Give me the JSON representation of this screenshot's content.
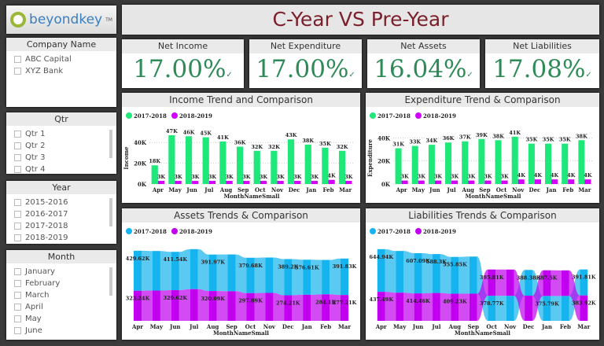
{
  "logo": {
    "text": "beyondkey",
    "tm": "TM"
  },
  "title": "C-Year VS Pre-Year",
  "slicers": [
    {
      "title": "Company Name",
      "items": [
        "ABC Capital",
        "XYZ Bank"
      ],
      "scroll": false
    },
    {
      "title": "Qtr",
      "items": [
        "Qtr 1",
        "Qtr 2",
        "Qtr 3",
        "Qtr 4"
      ],
      "scroll": true
    },
    {
      "title": "Year",
      "items": [
        "2015-2016",
        "2016-2017",
        "2017-2018",
        "2018-2019"
      ],
      "scroll": true
    },
    {
      "title": "Month",
      "items": [
        "January",
        "February",
        "March",
        "April",
        "May",
        "June"
      ],
      "scroll": true
    }
  ],
  "kpis": [
    {
      "label": "Net Income",
      "value": "17.00%"
    },
    {
      "label": "Net Expenditure",
      "value": "17.00%"
    },
    {
      "label": "Net Assets",
      "value": "16.04%"
    },
    {
      "label": "Net Liabilities",
      "value": "17.08%"
    }
  ],
  "kpi_icon": "check-icon",
  "colors": {
    "green": "#1ee87a",
    "magenta": "#d400ff",
    "blue": "#15b4ee",
    "purple": "#c000ee",
    "title": "#7a1f2b",
    "kpi": "#2e8b57"
  },
  "chart_data": [
    {
      "type": "bar",
      "title": "Income Trend and Comparison",
      "xlabel": "MonthNameSmall",
      "ylabel": "Income",
      "categories": [
        "Apr",
        "May",
        "Jun",
        "Jul",
        "Aug",
        "Sep",
        "Oct",
        "Nov",
        "Dec",
        "Jan",
        "Feb",
        "Mar"
      ],
      "yticks": [
        "0K",
        "20K",
        "40K"
      ],
      "ylim": [
        0,
        50
      ],
      "series": [
        {
          "name": "2017-2018",
          "values": [
            18,
            47,
            46,
            45,
            41,
            36,
            32,
            32,
            43,
            38,
            35,
            32
          ],
          "color": "#1ee87a"
        },
        {
          "name": "2018-2019",
          "values": [
            3,
            3,
            3,
            3,
            3,
            3,
            3,
            3,
            3,
            3,
            4,
            3
          ],
          "color": "#d400ff"
        }
      ]
    },
    {
      "type": "bar",
      "title": "Expenditure Trend & Comparison",
      "xlabel": "MonthNameSmall",
      "ylabel": "Expenditure",
      "categories": [
        "Apr",
        "May",
        "Jun",
        "Jul",
        "Aug",
        "Sep",
        "Oct",
        "Nov",
        "Dec",
        "Jan",
        "Feb",
        "Mar"
      ],
      "yticks": [
        "0K",
        "20K",
        "40K"
      ],
      "ylim": [
        0,
        45
      ],
      "series": [
        {
          "name": "2017-2018",
          "values": [
            31,
            33,
            34,
            36,
            37,
            39,
            38,
            41,
            35,
            35,
            35,
            38
          ],
          "color": "#1ee87a"
        },
        {
          "name": "2018-2019",
          "values": [
            3,
            3,
            3,
            3,
            3,
            3,
            3,
            4,
            4,
            4,
            4,
            4
          ],
          "color": "#d400ff"
        }
      ]
    },
    {
      "type": "area",
      "subtype": "ribbon",
      "title": "Assets Trends & Comparison",
      "xlabel": "MonthNameSmall",
      "categories": [
        "Apr",
        "May",
        "Jun",
        "Jul",
        "Aug",
        "Sep",
        "Oct",
        "Nov",
        "Dec",
        "Jan",
        "Feb",
        "Mar"
      ],
      "series": [
        {
          "name": "2017-2018",
          "color": "#15b4ee",
          "values": [
            429.62,
            425,
            411.54,
            430,
            391.97,
            395,
            379.68,
            380,
            389.2,
            376.61,
            370,
            391.83
          ],
          "labels": [
            "429.62K",
            "",
            "411.54K",
            "",
            "391.97K",
            "",
            "379.68K",
            "",
            "389.2K",
            "376.61K",
            "",
            "391.83K"
          ]
        },
        {
          "name": "2018-2019",
          "color": "#c000ee",
          "values": [
            323.24,
            325,
            329.62,
            340,
            320.09,
            318,
            297.89,
            300,
            274.21,
            280,
            284.1,
            277.21
          ],
          "labels": [
            "323.24K",
            "",
            "329.62K",
            "",
            "320.09K",
            "",
            "297.89K",
            "",
            "274.21K",
            "",
            "284.1K",
            "277.21K"
          ]
        }
      ]
    },
    {
      "type": "area",
      "subtype": "ribbon",
      "title": "Liabilities Trends & Comparison",
      "xlabel": "MonthNameSmall",
      "categories": [
        "Apr",
        "May",
        "Jun",
        "Jul",
        "Aug",
        "Sep",
        "Oct",
        "Nov",
        "Dec",
        "Jan",
        "Feb",
        "Mar"
      ],
      "series": [
        {
          "name": "2017-2018",
          "color": "#15b4ee",
          "values": [
            644.94,
            630,
            607.09,
            588.3,
            555.85,
            560,
            378.77,
            378,
            388.38,
            375.79,
            376,
            391.81
          ],
          "labels": [
            "644.94K",
            "",
            "607.09K",
            "588.3K",
            "555.85K",
            "",
            "378.77K",
            "",
            "388.38K",
            "375.79K",
            "",
            "391.81K"
          ]
        },
        {
          "name": "2018-2019",
          "color": "#c000ee",
          "values": [
            437.49,
            425,
            414.46,
            420,
            409.23,
            410,
            395.81,
            396,
            380,
            387.5,
            386,
            383.92
          ],
          "labels": [
            "437.49K",
            "",
            "414.46K",
            "",
            "409.23K",
            "",
            "395.81K",
            "",
            "",
            "387.5K",
            "",
            "383.92K"
          ]
        }
      ]
    }
  ]
}
